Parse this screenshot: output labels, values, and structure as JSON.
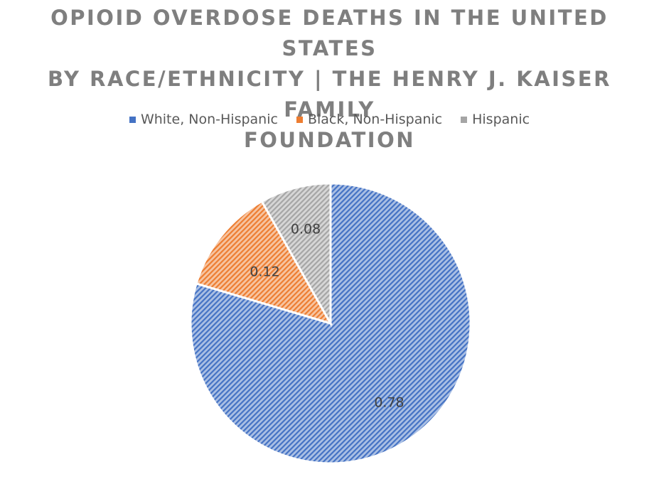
{
  "chart_data": {
    "type": "pie",
    "title_lines": [
      "OPIOID OVERDOSE DEATHS IN THE UNITED STATES",
      "BY RACE/ETHNICITY | THE HENRY J. KAISER FAMILY",
      "FOUNDATION"
    ],
    "legend_position": "top",
    "categories": [
      "White, Non-Hispanic",
      "Black, Non-Hispanic",
      "Hispanic"
    ],
    "values": [
      0.78,
      0.12,
      0.08
    ],
    "data_labels": [
      "0.78",
      "0.12",
      "0.08"
    ],
    "colors": [
      "#4472c4",
      "#ed7d31",
      "#a5a5a5"
    ],
    "fill_style": "diagonal-hatch",
    "start_angle": "12 o'clock, clockwise"
  }
}
